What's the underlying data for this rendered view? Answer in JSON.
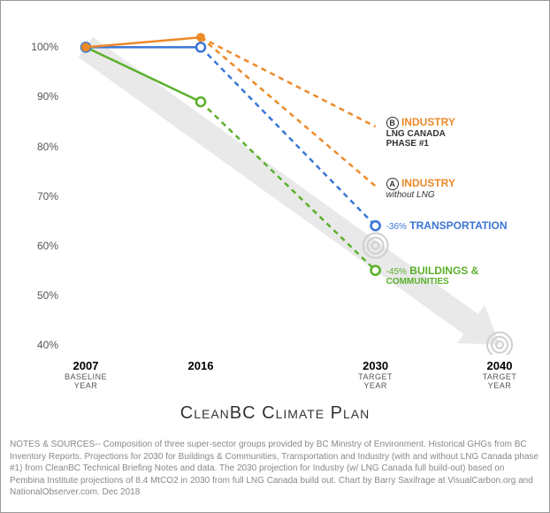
{
  "chart": {
    "type": "line",
    "title": "CleanBC Climate Plan",
    "background_color": "#ffffff",
    "border_color": "#999999",
    "axis": {
      "y": {
        "min": 38,
        "max": 104,
        "ticks": [
          40,
          50,
          60,
          70,
          80,
          90,
          100
        ],
        "suffix": "%"
      },
      "x": {
        "points": [
          {
            "year": "2007",
            "sub": "BASELINE\nYEAR"
          },
          {
            "year": "2016",
            "sub": ""
          },
          {
            "year": "2030",
            "sub": "TARGET\nYEAR"
          },
          {
            "year": "2040",
            "sub": "TARGET\nYEAR"
          }
        ],
        "positions_rel": [
          0.05,
          0.3,
          0.68,
          0.95
        ]
      }
    },
    "arrow": {
      "color": "#e9e9e9",
      "from": {
        "xi": 0,
        "y": 100
      },
      "to": {
        "xi": 3,
        "y": 40
      },
      "width": 28
    },
    "targets": [
      {
        "xi": 2,
        "y": 60,
        "color": "#cfcfcf"
      },
      {
        "xi": 3,
        "y": 40,
        "color": "#cfcfcf"
      }
    ],
    "series": [
      {
        "name": "Buildings & Communities",
        "color": "#5bb02c",
        "marker": "hollow",
        "segments": [
          {
            "from": {
              "xi": 0,
              "y": 100
            },
            "to": {
              "xi": 1,
              "y": 89
            },
            "dash": false
          },
          {
            "from": {
              "xi": 1,
              "y": 89
            },
            "to": {
              "xi": 2,
              "y": 55
            },
            "dash": true
          }
        ],
        "points": [
          {
            "xi": 0,
            "y": 100
          },
          {
            "xi": 1,
            "y": 89
          },
          {
            "xi": 2,
            "y": 55
          }
        ],
        "end_label": {
          "pct": "-45%",
          "main": "BUILDINGS &",
          "line2": "COMMUNITIES"
        }
      },
      {
        "name": "Transportation",
        "color": "#3a76d6",
        "marker": "hollow",
        "segments": [
          {
            "from": {
              "xi": 0,
              "y": 100
            },
            "to": {
              "xi": 1,
              "y": 100
            },
            "dash": false
          },
          {
            "from": {
              "xi": 1,
              "y": 100
            },
            "to": {
              "xi": 2,
              "y": 64
            },
            "dash": true
          }
        ],
        "points": [
          {
            "xi": 0,
            "y": 100
          },
          {
            "xi": 1,
            "y": 100
          },
          {
            "xi": 2,
            "y": 64
          }
        ],
        "end_label": {
          "pct": "-36%",
          "main": "TRANSPORTATION"
        }
      },
      {
        "name": "Industry without LNG",
        "color": "#ec8a2a",
        "marker": "solid",
        "segments": [
          {
            "from": {
              "xi": 0,
              "y": 100
            },
            "to": {
              "xi": 1,
              "y": 102
            },
            "dash": false
          },
          {
            "from": {
              "xi": 1,
              "y": 102
            },
            "to": {
              "xi": 2,
              "y": 72
            },
            "dash": true
          }
        ],
        "points": [
          {
            "xi": 0,
            "y": 100
          },
          {
            "xi": 1,
            "y": 102
          }
        ],
        "end_label": {
          "badge": "A",
          "main": "INDUSTRY",
          "sub": "without LNG",
          "sub_italic": true
        }
      },
      {
        "name": "Industry LNG Canada",
        "color": "#ec8a2a",
        "marker": "solid",
        "segments": [
          {
            "from": {
              "xi": 1,
              "y": 102
            },
            "to": {
              "xi": 2,
              "y": 84
            },
            "dash": true
          }
        ],
        "points": [],
        "end_label": {
          "badge": "B",
          "main": "INDUSTRY",
          "sub": "LNG CANADA",
          "sub2": "PHASE #1"
        }
      }
    ],
    "notes": "NOTES & SOURCES-- Composition of three super-sector groups provided by BC Ministry of Environment. Historical GHGs from BC Inventory Reports. Projections for 2030 for Buildings & Communities, Transportation and Industry (with and without LNG Canada phase #1) from CleanBC Technical Briefing Notes and data. The 2030 projection for Industry (w/ LNG Canada full build-out) based on Pembina Institute  projections of 8.4 MtCO2 in 2030 from full LNG Canada build out. Chart by Barry Saxifrage at VisualCarbon.org and NationalObserver.com. Dec 2018"
  }
}
